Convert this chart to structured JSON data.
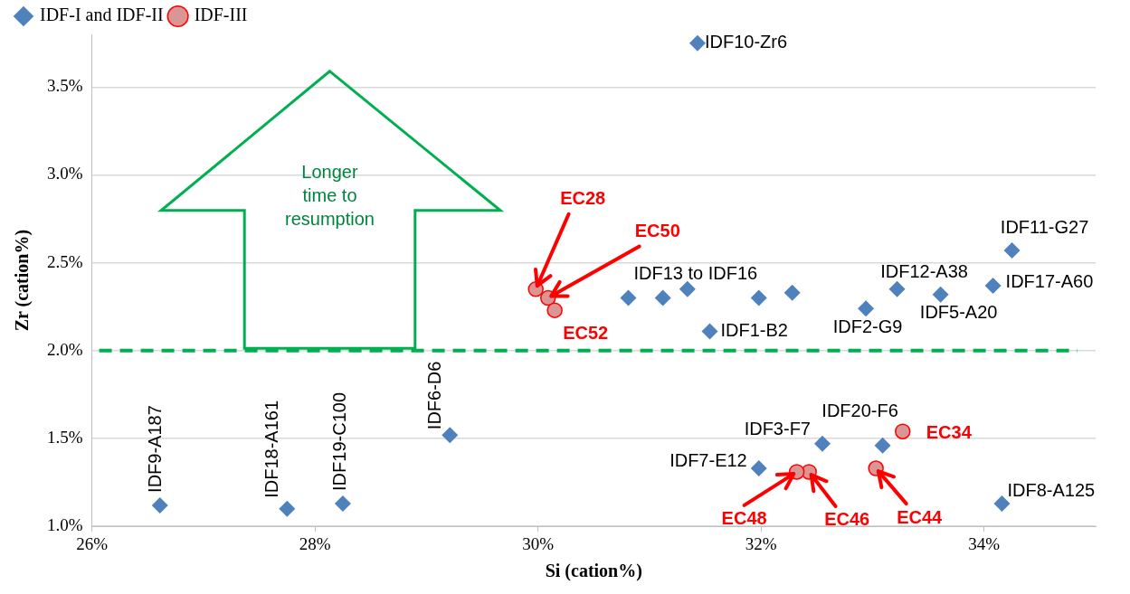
{
  "chart_data": {
    "type": "scatter",
    "xlabel": "Si (cation%)",
    "ylabel": "Zr (cation%)",
    "xlim": [
      26,
      35
    ],
    "xticks": [
      {
        "value": 26,
        "label": "26%"
      },
      {
        "value": 28,
        "label": "28%"
      },
      {
        "value": 30,
        "label": "30%"
      },
      {
        "value": 32,
        "label": "32%"
      },
      {
        "value": 34,
        "label": "34%"
      }
    ],
    "ylim": [
      1.0,
      3.8
    ],
    "yticks": [
      {
        "value": 1.0,
        "label": "1.0%"
      },
      {
        "value": 1.5,
        "label": "1.5%"
      },
      {
        "value": 2.0,
        "label": "2.0%"
      },
      {
        "value": 2.5,
        "label": "2.5%"
      },
      {
        "value": 3.0,
        "label": "3.0%"
      },
      {
        "value": 3.5,
        "label": "3.5%"
      }
    ],
    "grid": "y",
    "legend": "top left",
    "series": [
      {
        "name": "IDF-I and IDF-II",
        "color": "#4f81bd",
        "marker": "diamond",
        "x": [
          31.43,
          34.25,
          34.08,
          33.61,
          33.22,
          32.94,
          30.81,
          31.12,
          31.34,
          31.98,
          32.28,
          31.54,
          29.21,
          26.61,
          27.75,
          28.25,
          32.55,
          33.09,
          31.98,
          34.16
        ],
        "values": [
          3.75,
          2.57,
          2.37,
          2.32,
          2.35,
          2.24,
          2.3,
          2.3,
          2.35,
          2.3,
          2.33,
          2.11,
          1.52,
          1.12,
          1.1,
          1.13,
          1.47,
          1.46,
          1.33,
          1.13
        ]
      },
      {
        "name": "IDF-III",
        "color": "#d99694",
        "marker": "circle",
        "x": [
          29.98,
          30.09,
          30.15,
          33.27,
          33.03,
          32.43,
          32.32
        ],
        "values": [
          2.35,
          2.3,
          2.23,
          1.54,
          1.33,
          1.31,
          1.31
        ]
      }
    ],
    "ref_lines": [
      {
        "axis": "y",
        "value": 2.0,
        "label": null,
        "color": "#00b050",
        "line_style": "dashed"
      }
    ],
    "annotations": [
      {
        "text": "IDF10-Zr6",
        "x": 31.43,
        "y": 3.75
      },
      {
        "text": "IDF11-G27",
        "x": 34.25,
        "y": 2.57
      },
      {
        "text": "IDF17-A60",
        "x": 34.08,
        "y": 2.37
      },
      {
        "text": "IDF5-A20",
        "x": 33.61,
        "y": 2.32
      },
      {
        "text": "IDF12-A38",
        "x": 33.22,
        "y": 2.35
      },
      {
        "text": "IDF2-G9",
        "x": 32.94,
        "y": 2.24
      },
      {
        "text": "IDF13 to IDF16",
        "x": 31.34,
        "y": 2.35
      },
      {
        "text": "IDF1-B2",
        "x": 31.54,
        "y": 2.11
      },
      {
        "text": "IDF6-D6",
        "x": 29.21,
        "y": 1.52
      },
      {
        "text": "IDF9-A187",
        "x": 26.61,
        "y": 1.12
      },
      {
        "text": "IDF18-A161",
        "x": 27.75,
        "y": 1.1
      },
      {
        "text": "IDF19-C100",
        "x": 28.25,
        "y": 1.13
      },
      {
        "text": "IDF3-F7",
        "x": 32.55,
        "y": 1.47
      },
      {
        "text": "IDF20-F6",
        "x": 33.09,
        "y": 1.46
      },
      {
        "text": "IDF7-E12",
        "x": 31.98,
        "y": 1.33
      },
      {
        "text": "IDF8-A125",
        "x": 34.16,
        "y": 1.13
      },
      {
        "text": "EC28",
        "x": 29.98,
        "y": 2.35
      },
      {
        "text": "EC50",
        "x": 30.09,
        "y": 2.3
      },
      {
        "text": "EC52",
        "x": 30.15,
        "y": 2.23
      },
      {
        "text": "EC34",
        "x": 33.27,
        "y": 1.54
      },
      {
        "text": "EC44",
        "x": 33.03,
        "y": 1.33
      },
      {
        "text": "EC46",
        "x": 32.43,
        "y": 1.31
      },
      {
        "text": "EC48",
        "x": 32.32,
        "y": 1.31
      },
      "Longer time to resumption"
    ]
  }
}
